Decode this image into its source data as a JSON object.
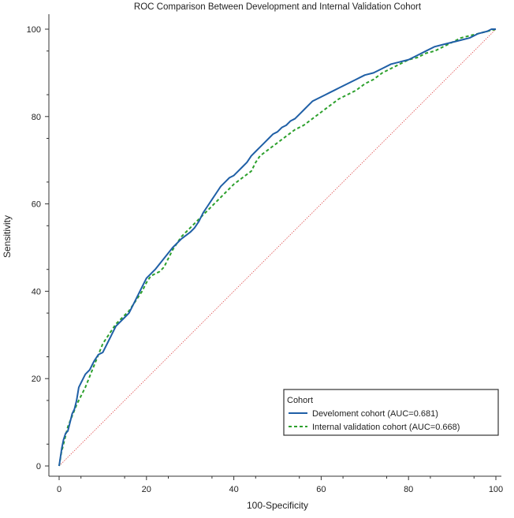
{
  "chart_data": {
    "type": "line",
    "title": "ROC Comparison Between Development and Internal Validation Cohort",
    "xlabel": "100-Specificity",
    "ylabel": "Sensitivity",
    "xlim": [
      0,
      100
    ],
    "ylim": [
      0,
      100
    ],
    "xticks": [
      "0",
      "20",
      "40",
      "60",
      "80",
      "100"
    ],
    "yticks": [
      "0",
      "20",
      "40",
      "60",
      "80",
      "100"
    ],
    "grid": false,
    "legend": {
      "title": "Cohort",
      "placement": "bottom-right"
    },
    "reference_line": {
      "style": "dotted",
      "color": "#e05050",
      "x": [
        0,
        100
      ],
      "y": [
        0,
        100
      ]
    },
    "series": [
      {
        "name": "Develoment cohort (AUC=0.681)",
        "color": "#1f5fa6",
        "style": "solid",
        "x": [
          0,
          0.3,
          0.6,
          1,
          1.5,
          2,
          2.5,
          3,
          3.5,
          4,
          4.5,
          5,
          5.5,
          6,
          7,
          8,
          9,
          10,
          11,
          12,
          13,
          14,
          15,
          16,
          17,
          18,
          19,
          20,
          22,
          24,
          26,
          28,
          30,
          31,
          32,
          33,
          34,
          35,
          36,
          37,
          38,
          39,
          40,
          41,
          42,
          43,
          44,
          45,
          46,
          47,
          48,
          49,
          50,
          51,
          52,
          53,
          54,
          55,
          56,
          57,
          58,
          59,
          60,
          61,
          62,
          63,
          64,
          65,
          66,
          67,
          68,
          69,
          70,
          72,
          74,
          76,
          78,
          80,
          82,
          84,
          86,
          88,
          90,
          92,
          94,
          96,
          98,
          99,
          100
        ],
        "y": [
          0,
          2,
          4,
          6,
          7.5,
          8,
          10,
          12,
          13,
          15,
          18,
          19,
          20,
          21,
          22,
          24,
          25.5,
          26,
          28,
          30,
          32,
          33,
          34,
          35,
          37,
          39,
          41,
          43,
          45,
          47.5,
          50,
          52,
          53.5,
          54.5,
          56,
          58,
          59.5,
          61,
          62.5,
          64,
          65,
          66,
          66.5,
          67.5,
          68.5,
          69.5,
          71,
          72,
          73,
          74,
          75,
          76,
          76.5,
          77.5,
          78,
          79,
          79.5,
          80.5,
          81.5,
          82.5,
          83.5,
          84,
          84.5,
          85,
          85.5,
          86,
          86.5,
          87,
          87.5,
          88,
          88.5,
          89,
          89.5,
          90,
          91,
          92,
          92.5,
          93,
          94,
          95,
          96,
          96.5,
          97,
          97.5,
          98,
          99,
          99.5,
          100,
          100
        ]
      },
      {
        "name": "Internal validation cohort (AUC=0.668)",
        "color": "#2ca02c",
        "style": "dashed",
        "x": [
          0,
          0.5,
          1,
          1.5,
          2,
          3,
          4,
          5,
          6,
          7,
          8,
          9,
          10,
          11,
          12,
          13,
          14,
          15,
          16,
          17,
          18,
          19,
          20,
          21,
          22,
          23,
          24,
          25,
          26,
          27,
          28,
          29,
          30,
          32,
          34,
          36,
          38,
          40,
          42,
          44,
          45,
          46,
          48,
          50,
          52,
          54,
          56,
          58,
          60,
          62,
          64,
          66,
          68,
          70,
          72,
          74,
          76,
          78,
          80,
          82,
          84,
          86,
          88,
          90,
          92,
          94,
          96,
          98,
          100
        ],
        "y": [
          0,
          3,
          5,
          7,
          9,
          11.5,
          14,
          16,
          18,
          20.5,
          23,
          25.5,
          28,
          29.5,
          31,
          32.5,
          33.5,
          34.5,
          35.5,
          37,
          38.5,
          40,
          42,
          43.5,
          44,
          44.5,
          45.5,
          47.5,
          49.5,
          51,
          52.5,
          53.5,
          54.5,
          56.5,
          58.5,
          60.5,
          62.5,
          64.5,
          66,
          67.5,
          69.5,
          71,
          72.5,
          74,
          75.5,
          77,
          78,
          79.5,
          81,
          82.5,
          84,
          85,
          86,
          87.5,
          88.5,
          90,
          91,
          92,
          93,
          93.5,
          94.5,
          95,
          96,
          97,
          98,
          98.5,
          99,
          99.5,
          100
        ]
      }
    ]
  }
}
